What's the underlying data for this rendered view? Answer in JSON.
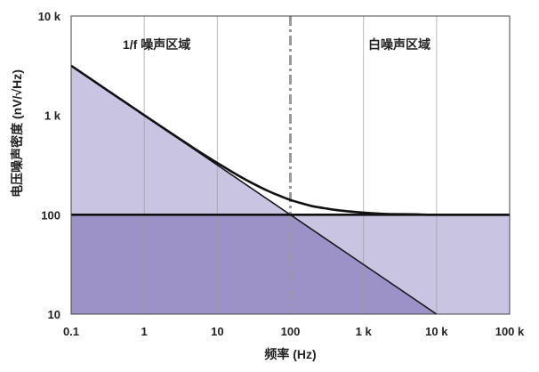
{
  "chart_data": {
    "type": "area",
    "title": "",
    "xlabel": "频率 (Hz)",
    "ylabel": "电压噪声密度 (nV/√Hz)",
    "x_scale": "log",
    "y_scale": "log",
    "xlim": [
      0.1,
      100000
    ],
    "ylim": [
      10,
      10000
    ],
    "x_ticks": [
      0.1,
      1,
      10,
      100,
      1000,
      10000,
      100000
    ],
    "x_tick_labels": [
      "0.1",
      "1",
      "10",
      "100",
      "1 k",
      "10 k",
      "100 k"
    ],
    "y_ticks": [
      10,
      100,
      1000,
      10000
    ],
    "y_tick_labels": [
      "10",
      "100",
      "1 k",
      "10 k"
    ],
    "grid_x": true,
    "grid_y": false,
    "corner_frequency": 100,
    "series": [
      {
        "x": [
          0.1,
          10000
        ],
        "values": [
          3162,
          10
        ]
      },
      {
        "x": [
          0.1,
          100000
        ],
        "values": [
          100,
          100
        ]
      },
      {
        "x": [
          0.1,
          0.2,
          0.5,
          1,
          2,
          3,
          5,
          7,
          10,
          20,
          30,
          50,
          70,
          100,
          150,
          200,
          300,
          500,
          1000,
          2000,
          5000,
          10000,
          100000
        ],
        "values": [
          3164,
          2238,
          1418,
          1005,
          714,
          586,
          458,
          391,
          332,
          245,
          208,
          173,
          156,
          141,
          129,
          122,
          116,
          110,
          105,
          102,
          101,
          100,
          100
        ]
      }
    ],
    "annotations": [
      "1/f 噪声区域",
      "白噪声区域"
    ],
    "colors": {
      "upper_region": "#c8c4e2",
      "lower_region": "#9c92c7",
      "line": "#111111",
      "grid": "#9c9c9c",
      "corner_line": "#9a9a9a",
      "border": "#444444"
    }
  }
}
